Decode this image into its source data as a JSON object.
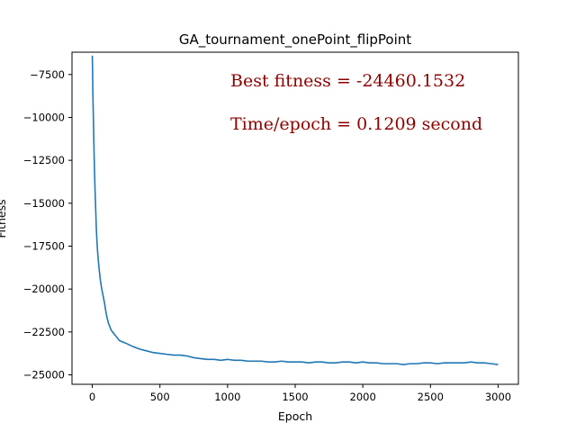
{
  "chart_data": {
    "type": "line",
    "title": "GA_tournament_onePoint_flipPoint",
    "xlabel": "Epoch",
    "ylabel": "Fitness",
    "xlim": [
      -150,
      3150
    ],
    "ylim": [
      -25550,
      -6200
    ],
    "xticks": [
      0,
      500,
      1000,
      1500,
      2000,
      2500,
      3000
    ],
    "yticks": [
      -25000,
      -22500,
      -20000,
      -17500,
      -15000,
      -12500,
      -10000,
      -7500
    ],
    "x_tick_labels": [
      "0",
      "500",
      "1000",
      "1500",
      "2000",
      "2500",
      "3000"
    ],
    "y_tick_labels": [
      "−25000",
      "−22500",
      "−20000",
      "−17500",
      "−15000",
      "−12500",
      "−10000",
      "−7500"
    ],
    "grid": false,
    "series": [
      {
        "color": "#1f77b4",
        "x": [
          0,
          2,
          4,
          6,
          8,
          10,
          13,
          16,
          20,
          25,
          30,
          35,
          40,
          50,
          60,
          70,
          80,
          90,
          100,
          110,
          120,
          140,
          160,
          180,
          200,
          230,
          260,
          300,
          350,
          400,
          450,
          500,
          550,
          600,
          650,
          700,
          750,
          800,
          850,
          900,
          950,
          1000,
          1050,
          1100,
          1150,
          1200,
          1250,
          1300,
          1350,
          1400,
          1450,
          1500,
          1550,
          1600,
          1650,
          1700,
          1750,
          1800,
          1850,
          1900,
          1950,
          2000,
          2050,
          2100,
          2150,
          2200,
          2250,
          2300,
          2350,
          2400,
          2450,
          2500,
          2550,
          2600,
          2650,
          2700,
          2750,
          2800,
          2850,
          2900,
          2950,
          3000
        ],
        "y": [
          -6400,
          -7200,
          -8500,
          -9300,
          -10000,
          -10800,
          -12000,
          -13000,
          -14100,
          -15300,
          -16500,
          -17300,
          -17900,
          -18800,
          -19500,
          -20000,
          -20400,
          -20800,
          -21300,
          -21700,
          -22000,
          -22400,
          -22600,
          -22800,
          -23000,
          -23100,
          -23200,
          -23350,
          -23500,
          -23600,
          -23700,
          -23750,
          -23800,
          -23850,
          -23850,
          -23900,
          -24000,
          -24050,
          -24100,
          -24100,
          -24150,
          -24100,
          -24150,
          -24150,
          -24200,
          -24200,
          -24200,
          -24250,
          -24250,
          -24200,
          -24250,
          -24250,
          -24250,
          -24300,
          -24250,
          -24250,
          -24300,
          -24300,
          -24250,
          -24250,
          -24300,
          -24250,
          -24300,
          -24300,
          -24350,
          -24350,
          -24350,
          -24400,
          -24350,
          -24350,
          -24300,
          -24300,
          -24350,
          -24300,
          -24300,
          -24300,
          -24300,
          -24250,
          -24300,
          -24300,
          -24350,
          -24400
        ]
      }
    ],
    "annotations": [
      {
        "text": "Best fitness = -24460.1532",
        "color": "#8b0000"
      },
      {
        "text": "Time/epoch = 0.1209 second",
        "color": "#8b0000"
      }
    ]
  }
}
